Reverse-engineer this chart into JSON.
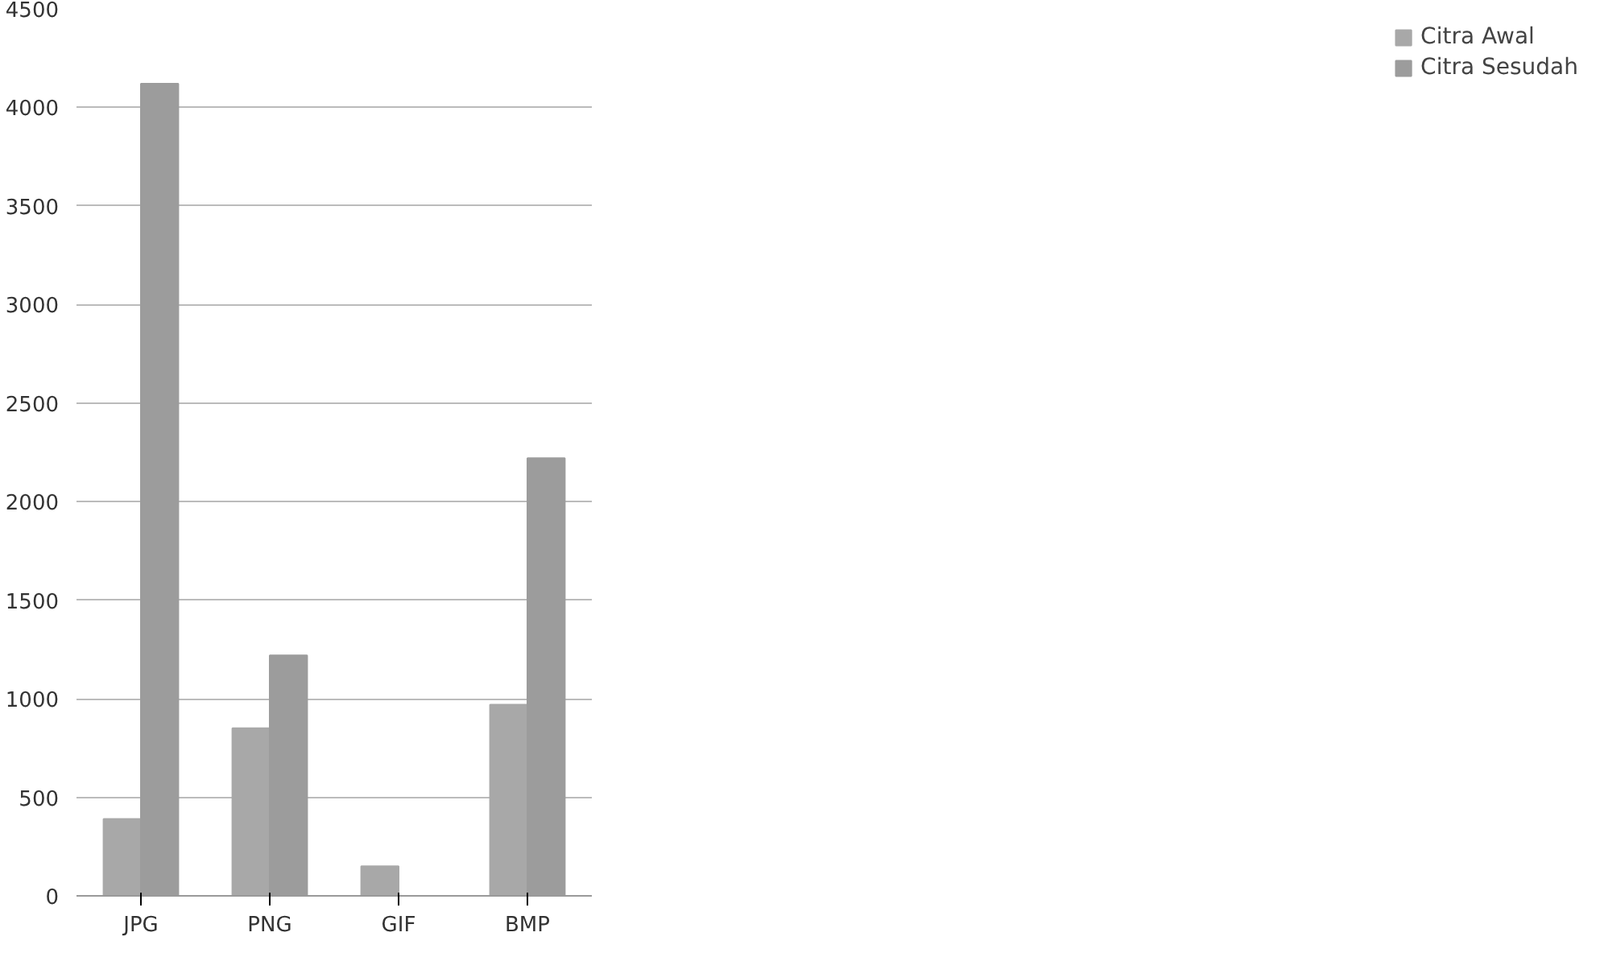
{
  "chart_data": {
    "type": "bar",
    "categories": [
      "JPG",
      "PNG",
      "GIF",
      "BMP"
    ],
    "series": [
      {
        "name": "Citra Awal",
        "color": "#a8a8a8",
        "values": [
          390,
          850,
          150,
          970
        ]
      },
      {
        "name": "Citra Sesudah",
        "color": "#9c9c9c",
        "values": [
          4120,
          1220,
          0,
          2220
        ]
      }
    ],
    "ylim": [
      0,
      4500
    ],
    "yticks": [
      0,
      500,
      1000,
      1500,
      2000,
      2500,
      3000,
      3500,
      4000,
      4500
    ],
    "grid": "y",
    "legend": "right"
  }
}
